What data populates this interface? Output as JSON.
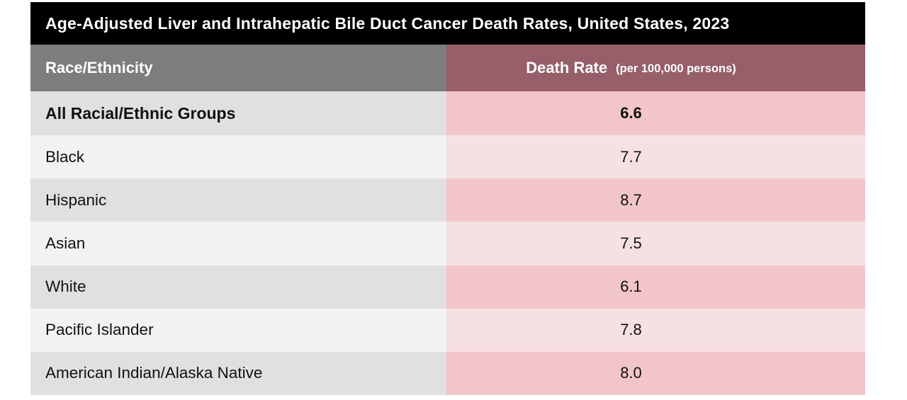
{
  "title": "Age-Adjusted Liver and Intrahepatic Bile Duct Cancer Death Rates, United States, 2023",
  "header": {
    "race_label": "Race/Ethnicity",
    "rate_label": "Death Rate",
    "rate_unit": "(per 100,000 persons)"
  },
  "chart_data": {
    "type": "table",
    "title": "Age-Adjusted Liver and Intrahepatic Bile Duct Cancer Death Rates, United States, 2023",
    "columns": [
      "Race/Ethnicity",
      "Death Rate (per 100,000 persons)"
    ],
    "unit": "deaths per 100,000 persons",
    "rows": [
      {
        "race": "All Racial/Ethnic Groups",
        "rate": "6.6",
        "bold": true
      },
      {
        "race": "Black",
        "rate": "7.7",
        "bold": false
      },
      {
        "race": "Hispanic",
        "rate": "8.7",
        "bold": false
      },
      {
        "race": "Asian",
        "rate": "7.5",
        "bold": false
      },
      {
        "race": "White",
        "rate": "6.1",
        "bold": false
      },
      {
        "race": "Pacific Islander",
        "rate": "7.8",
        "bold": false
      },
      {
        "race": "American Indian/Alaska Native",
        "rate": "8.0",
        "bold": false
      }
    ]
  },
  "colors": {
    "title_bg": "#000000",
    "race_header_bg": "#7d7d7d",
    "rate_header_bg": "#965f6a",
    "row_odd_left": "#e0e0e0",
    "row_odd_right": "#f2c6c9",
    "row_even_left": "#f2f2f2",
    "row_even_right": "#f7e0e2"
  }
}
